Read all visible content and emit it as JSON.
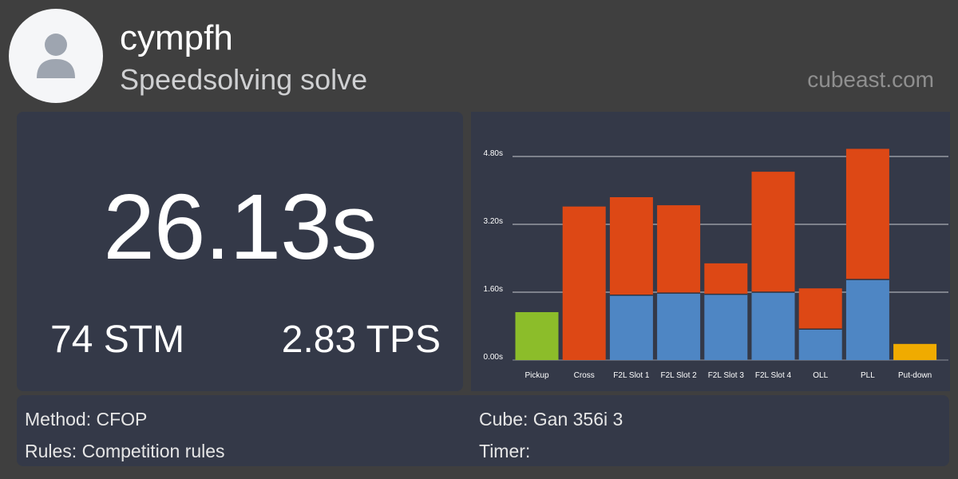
{
  "header": {
    "username": "cympfh",
    "subtitle": "Speedsolving solve",
    "brand": "cubeast.com",
    "avatar_icon": "user-icon"
  },
  "stats": {
    "time": "26.13s",
    "stm": "74 STM",
    "tps": "2.83 TPS"
  },
  "chart_data": {
    "type": "bar",
    "categories": [
      "Pickup",
      "Cross",
      "F2L Slot 1",
      "F2L Slot 2",
      "F2L Slot 3",
      "F2L Slot 4",
      "OLL",
      "PLL",
      "Put-down"
    ],
    "yticks": [
      "0.00s",
      "1.60s",
      "3.20s",
      "4.80s"
    ],
    "ylim": [
      0,
      4.8
    ],
    "grid": true,
    "bars": [
      {
        "segments": [
          {
            "value": 1.13,
            "color": "#8cbd2a"
          }
        ]
      },
      {
        "segments": [
          {
            "value": 3.62,
            "color": "#dd4815"
          }
        ]
      },
      {
        "segments": [
          {
            "value": 1.53,
            "color": "#4e86c4"
          },
          {
            "value": 2.31,
            "color": "#dd4815"
          }
        ]
      },
      {
        "segments": [
          {
            "value": 1.58,
            "color": "#4e86c4"
          },
          {
            "value": 2.07,
            "color": "#dd4815"
          }
        ]
      },
      {
        "segments": [
          {
            "value": 1.55,
            "color": "#4e86c4"
          },
          {
            "value": 0.73,
            "color": "#dd4815"
          }
        ]
      },
      {
        "segments": [
          {
            "value": 1.6,
            "color": "#4e86c4"
          },
          {
            "value": 2.84,
            "color": "#dd4815"
          }
        ]
      },
      {
        "segments": [
          {
            "value": 0.73,
            "color": "#4e86c4"
          },
          {
            "value": 0.96,
            "color": "#dd4815"
          }
        ]
      },
      {
        "segments": [
          {
            "value": 1.9,
            "color": "#4e86c4"
          },
          {
            "value": 3.08,
            "color": "#dd4815"
          }
        ]
      },
      {
        "segments": [
          {
            "value": 0.38,
            "color": "#f0ab00"
          }
        ]
      }
    ]
  },
  "info": {
    "method": "Method: CFOP",
    "rules": "Rules: Competition rules",
    "cube": "Cube: Gan 356i 3",
    "timer": "Timer:"
  }
}
